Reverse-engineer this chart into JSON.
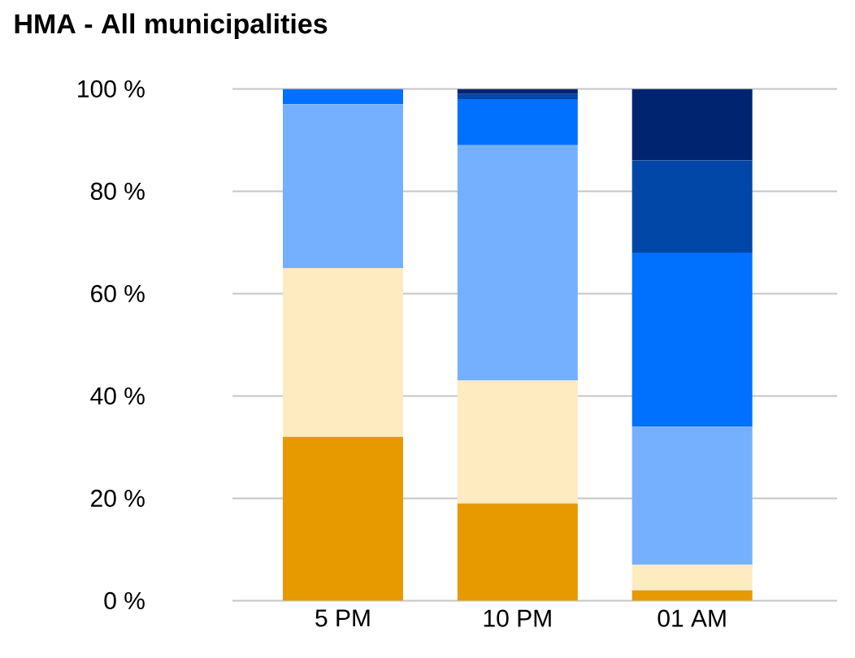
{
  "chart_data": {
    "type": "bar",
    "stacked": true,
    "title": "HMA - All municipalities",
    "categories": [
      "5 PM",
      "10 PM",
      "01 AM"
    ],
    "series": [
      {
        "color": "#e69a00",
        "values": [
          32,
          19,
          2
        ]
      },
      {
        "color": "#ffebc0",
        "values": [
          33,
          24,
          5
        ]
      },
      {
        "color": "#75b0ff",
        "values": [
          32,
          46,
          27
        ]
      },
      {
        "color": "#0070ff",
        "values": [
          3,
          9,
          34
        ]
      },
      {
        "color": "#0047a8",
        "values": [
          0,
          1,
          18
        ]
      },
      {
        "color": "#002470",
        "values": [
          0,
          1,
          14
        ]
      }
    ],
    "ylim": [
      0,
      100
    ],
    "yticks": [
      {
        "value": 0,
        "label": "0 %"
      },
      {
        "value": 20,
        "label": "20 %"
      },
      {
        "value": 40,
        "label": "40 %"
      },
      {
        "value": 60,
        "label": "60 %"
      },
      {
        "value": 80,
        "label": "80 %"
      },
      {
        "value": 100,
        "label": "100 %"
      }
    ],
    "grid": "y"
  }
}
